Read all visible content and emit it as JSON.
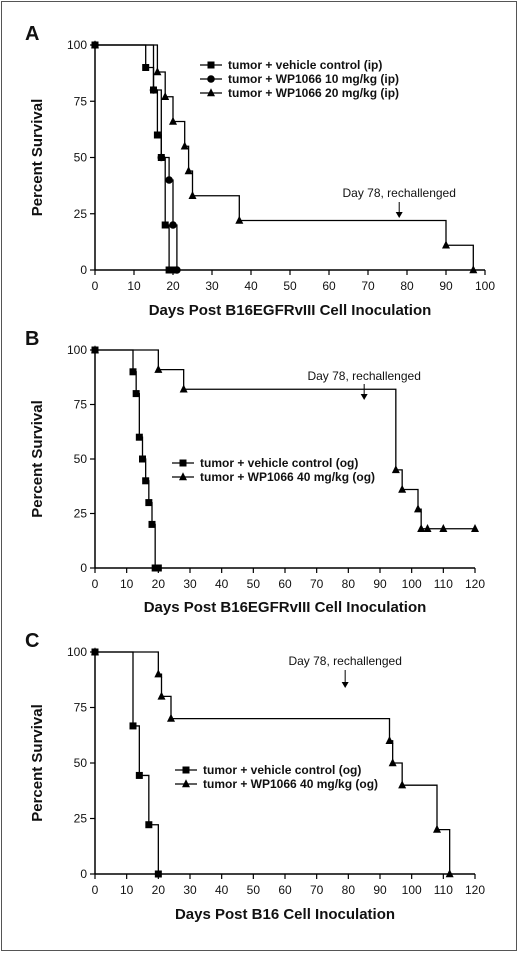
{
  "chart_data": [
    {
      "panel": "A",
      "type": "line",
      "xlabel": "Days Post B16EGFRvIII Cell Inoculation",
      "ylabel": "Percent Survival",
      "xlim": [
        0,
        100
      ],
      "ylim": [
        0,
        100
      ],
      "xticks": [
        0,
        10,
        20,
        30,
        40,
        50,
        60,
        70,
        80,
        90,
        100
      ],
      "yticks": [
        0,
        25,
        50,
        75,
        100
      ],
      "grid": false,
      "legend_position": "top-right",
      "annotation": {
        "text": "Day 78, rechallenged",
        "x": 78
      },
      "series": [
        {
          "name": "tumor + vehicle control (ip)",
          "marker": "square",
          "x": [
            0,
            13,
            15,
            16,
            17,
            18,
            19,
            20
          ],
          "y": [
            100,
            90,
            80,
            60,
            50,
            20,
            0,
            0
          ]
        },
        {
          "name": "tumor + WP1066 10 mg/kg (ip)",
          "marker": "circle",
          "x": [
            0,
            15,
            17,
            19,
            20,
            21
          ],
          "y": [
            100,
            80,
            50,
            40,
            20,
            0
          ]
        },
        {
          "name": "tumor + WP1066 20 mg/kg (ip)",
          "marker": "triangle",
          "x": [
            0,
            16,
            18,
            20,
            23,
            24,
            25,
            37,
            90,
            97
          ],
          "y": [
            100,
            88,
            77,
            66,
            55,
            44,
            33,
            22,
            11,
            0
          ]
        }
      ]
    },
    {
      "panel": "B",
      "type": "line",
      "xlabel": "Days Post B16EGFRvIII Cell Inoculation",
      "ylabel": "Percent Survival",
      "xlim": [
        0,
        120
      ],
      "ylim": [
        0,
        100
      ],
      "xticks": [
        0,
        10,
        20,
        30,
        40,
        50,
        60,
        70,
        80,
        90,
        100,
        110,
        120
      ],
      "yticks": [
        0,
        25,
        50,
        75,
        100
      ],
      "grid": false,
      "legend_position": "center",
      "annotation": {
        "text": "Day 78, rechallenged",
        "x": 85
      },
      "series": [
        {
          "name": "tumor + vehicle control (og)",
          "marker": "square",
          "x": [
            0,
            12,
            13,
            14,
            15,
            16,
            17,
            18,
            19,
            20
          ],
          "y": [
            100,
            90,
            80,
            60,
            50,
            40,
            30,
            20,
            0,
            0
          ]
        },
        {
          "name": "tumor + WP1066 40 mg/kg (og)",
          "marker": "triangle",
          "x": [
            0,
            20,
            28,
            95,
            97,
            102,
            103,
            105,
            110,
            120
          ],
          "y": [
            100,
            91,
            82,
            45,
            36,
            27,
            18,
            18,
            18,
            18
          ]
        }
      ]
    },
    {
      "panel": "C",
      "type": "line",
      "xlabel": "Days Post B16 Cell Inoculation",
      "ylabel": "Percent Survival",
      "xlim": [
        0,
        120
      ],
      "ylim": [
        0,
        100
      ],
      "xticks": [
        0,
        10,
        20,
        30,
        40,
        50,
        60,
        70,
        80,
        90,
        100,
        110,
        120
      ],
      "yticks": [
        0,
        25,
        50,
        75,
        100
      ],
      "grid": false,
      "legend_position": "center",
      "annotation": {
        "text": "Day 78, rechallenged",
        "x": 79
      },
      "series": [
        {
          "name": "tumor + vehicle control (og)",
          "marker": "square",
          "x": [
            0,
            12,
            14,
            17,
            20
          ],
          "y": [
            100,
            66.7,
            44.4,
            22.2,
            0
          ]
        },
        {
          "name": "tumor + WP1066 40 mg/kg (og)",
          "marker": "triangle",
          "x": [
            0,
            20,
            21,
            24,
            93,
            94,
            97,
            108,
            112
          ],
          "y": [
            100,
            90,
            80,
            70,
            60,
            50,
            40,
            20,
            0
          ]
        }
      ]
    }
  ]
}
